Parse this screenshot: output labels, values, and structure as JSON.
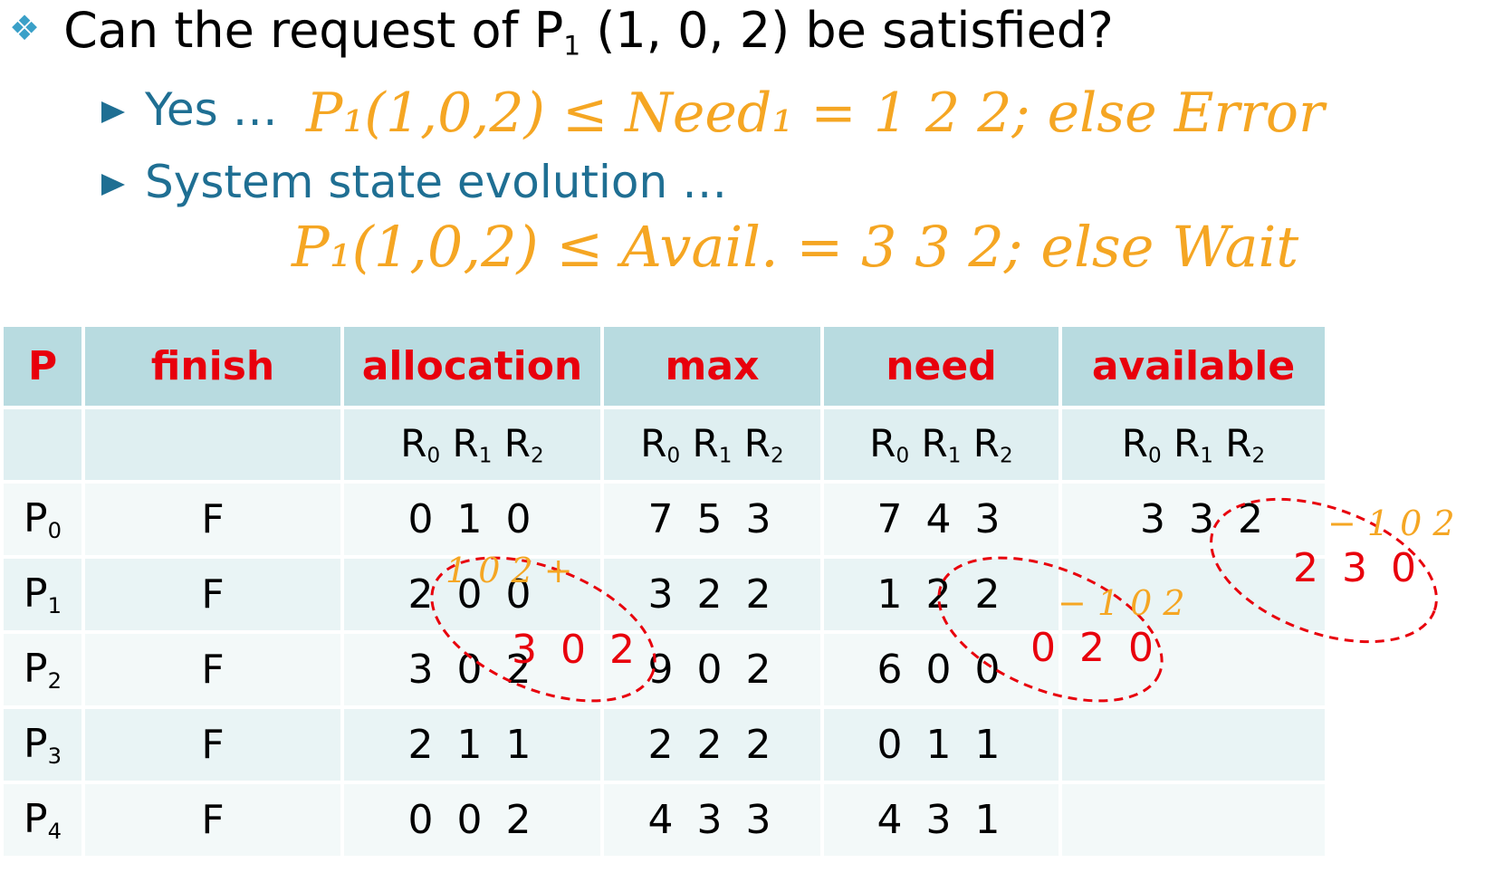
{
  "question": {
    "prefix": "Can the request of P",
    "sub": "1",
    "suffix": " (1, 0, 2) be satisfied?"
  },
  "bullets": [
    "Yes …",
    "System state evolution …"
  ],
  "handwriting": {
    "need_check": "P₁(1,0,2) ≤ Need₁ = 1 2 2; else Error",
    "avail_check": "P₁(1,0,2) ≤ Avail. = 3 3 2; else Wait",
    "alloc_add": "1 0 2 +",
    "need_sub": "− 1 0 2",
    "avail_sub": "− 1 0 2"
  },
  "table": {
    "headers": [
      "P",
      "finish",
      "allocation",
      "max",
      "need",
      "available"
    ],
    "resource_labels": {
      "base": "R",
      "subs": [
        "0",
        "1",
        "2"
      ]
    },
    "rows": [
      {
        "p": "P",
        "psub": "0",
        "finish": "F",
        "allocation": "0 1 0",
        "max": "7 5 3",
        "need": "7 4 3",
        "available": "3 3 2"
      },
      {
        "p": "P",
        "psub": "1",
        "finish": "F",
        "allocation": "2 0 0",
        "max": "3 2 2",
        "need": "1 2 2",
        "available": ""
      },
      {
        "p": "P",
        "psub": "2",
        "finish": "F",
        "allocation": "3 0 2",
        "max": "9 0 2",
        "need": "6 0 0",
        "available": ""
      },
      {
        "p": "P",
        "psub": "3",
        "finish": "F",
        "allocation": "2 1 1",
        "max": "2 2 2",
        "need": "0 1 1",
        "available": ""
      },
      {
        "p": "P",
        "psub": "4",
        "finish": "F",
        "allocation": "0 0 2",
        "max": "4 3 3",
        "need": "4 3 1",
        "available": ""
      }
    ]
  },
  "annotations": {
    "alloc_new": "3 0 2",
    "need_new": "0 2 0",
    "avail_new": "2 3 0"
  },
  "colors": {
    "header_text": "#e8000c",
    "bullet_text": "#1f6f93",
    "ink_orange": "#f5a623",
    "ink_red": "#e8000c",
    "header_bg": "#b8dbe0"
  }
}
